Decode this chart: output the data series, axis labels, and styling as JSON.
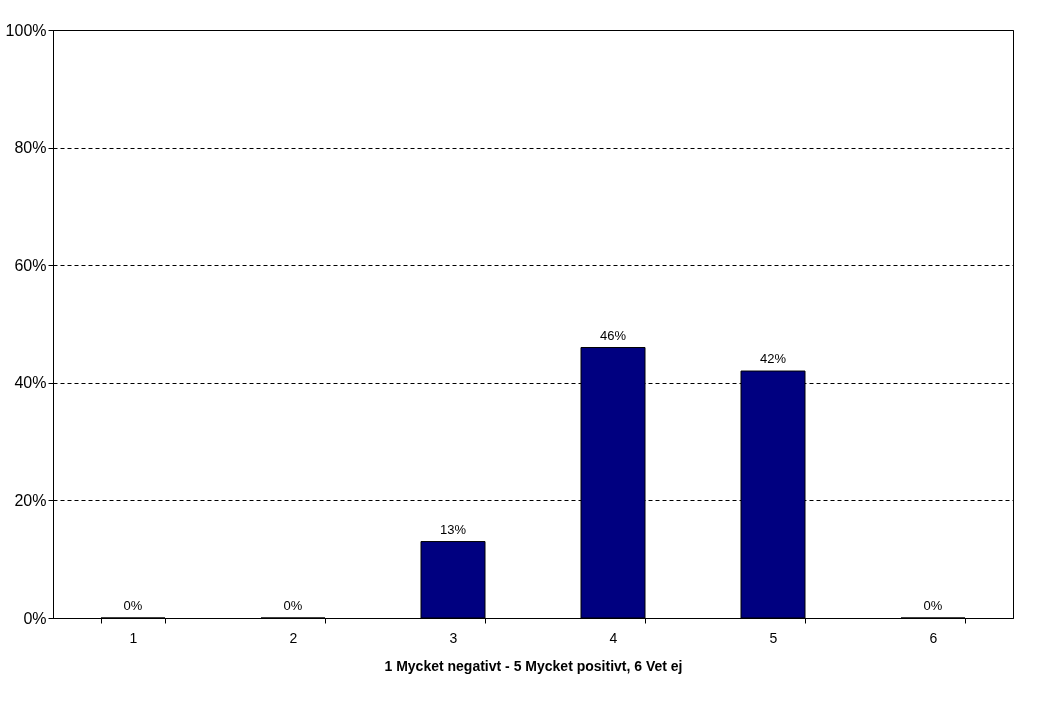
{
  "chart_data": {
    "type": "bar",
    "xlabel": "1 Mycket negativt - 5 Mycket positivt, 6 Vet ej",
    "categories": [
      "1",
      "2",
      "3",
      "4",
      "5",
      "6"
    ],
    "values": [
      0,
      0,
      13,
      46,
      42,
      0
    ],
    "value_labels": [
      "0%",
      "0%",
      "13%",
      "46%",
      "42%",
      "0%"
    ],
    "color": "#000080",
    "ylim": [
      0,
      100
    ],
    "yticks": [
      {
        "value": 0,
        "label": "0%"
      },
      {
        "value": 20,
        "label": "20%"
      },
      {
        "value": 40,
        "label": "40%"
      },
      {
        "value": 60,
        "label": "60%"
      },
      {
        "value": 80,
        "label": "80%"
      },
      {
        "value": 100,
        "label": "100%"
      }
    ],
    "grid": "y",
    "line_style": "dashed",
    "legend": false
  }
}
